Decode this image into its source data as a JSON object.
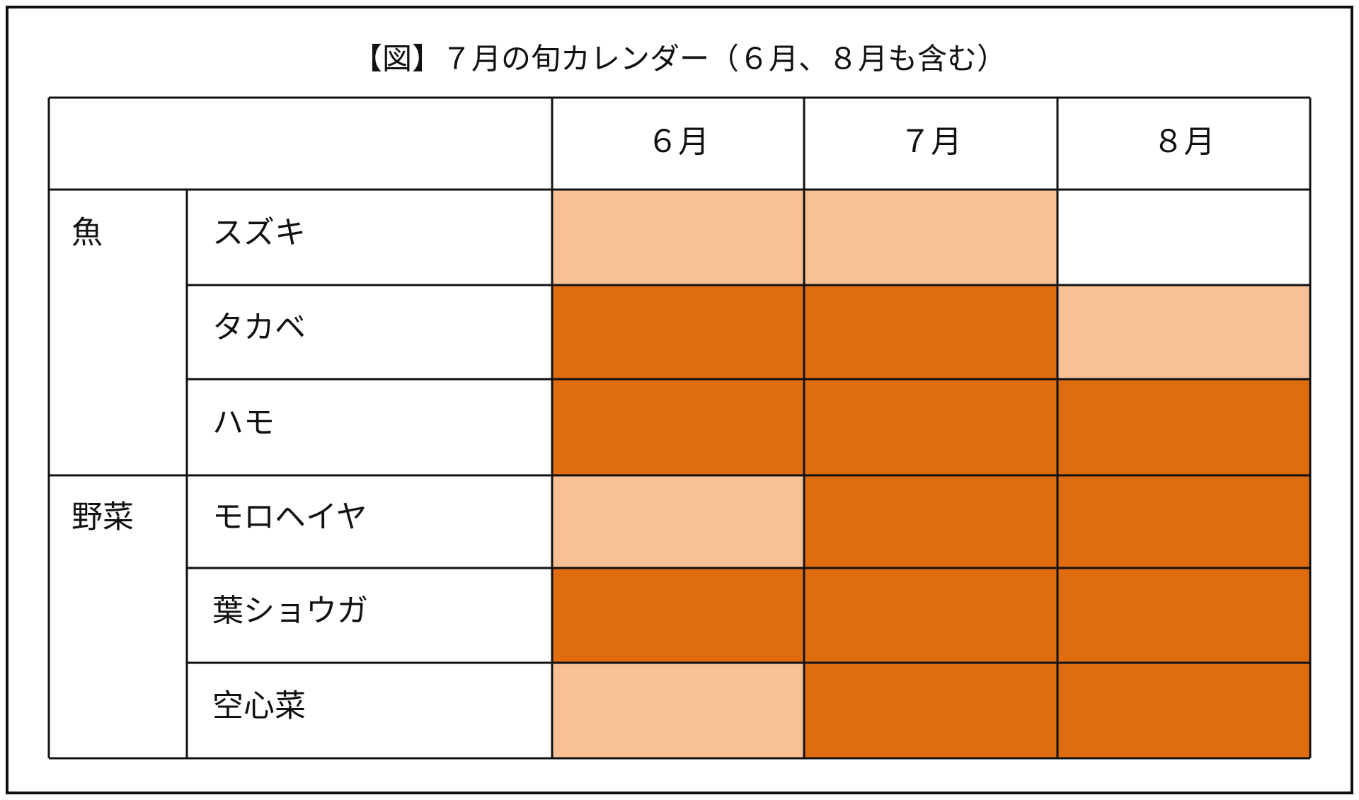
{
  "title": "【図】７月の旬カレンダー（６月、８月も含む）",
  "table": {
    "columns": [
      "６月",
      "７月",
      "８月"
    ],
    "rows": [
      {
        "category": "魚",
        "item": "スズキ",
        "cells": [
          "#f8c195",
          "#f8c195",
          "#ffffff"
        ]
      },
      {
        "item": "タカベ",
        "cells": [
          "#e06c10",
          "#e06c10",
          "#f8c195"
        ]
      },
      {
        "item": "ハモ",
        "cells": [
          "#e06c10",
          "#e06c10",
          "#e06c10"
        ]
      },
      {
        "category": "野菜",
        "item": "モロヘイヤ",
        "cells": [
          "#f8c195",
          "#e06c10",
          "#e06c10"
        ]
      },
      {
        "item": "葉ショウガ",
        "cells": [
          "#e06c10",
          "#e06c10",
          "#e06c10"
        ]
      },
      {
        "item": "空心菜",
        "cells": [
          "#f8c195",
          "#e06c10",
          "#e06c10"
        ]
      }
    ]
  }
}
